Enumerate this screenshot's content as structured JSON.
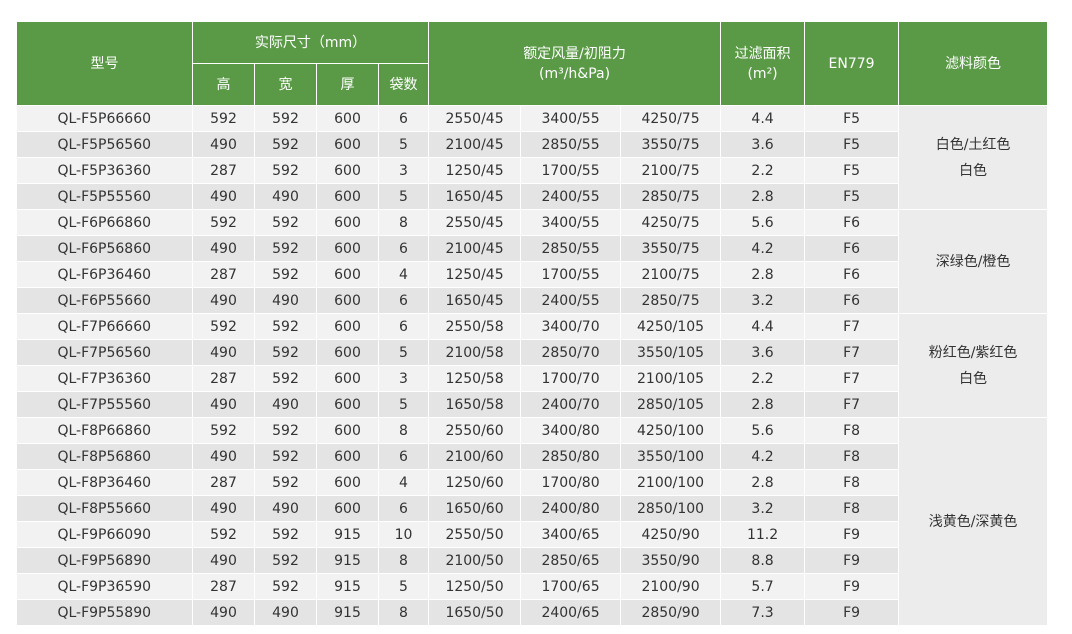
{
  "header": {
    "model": "型号",
    "size_group": "实际尺寸（mm）",
    "size_cols": [
      "高",
      "宽",
      "厚",
      "袋数"
    ],
    "airflow_line1": "额定风量/初阻力",
    "airflow_line2": "(m³/h&Pa)",
    "area_line1": "过滤面积",
    "area_line2": "(m²)",
    "en779": "EN779",
    "color": "滤料颜色"
  },
  "rows": [
    {
      "model": "QL-F5P66660",
      "h": "592",
      "w": "592",
      "d": "600",
      "bags": "6",
      "a1": "2550/45",
      "a2": "3400/55",
      "a3": "4250/75",
      "area": "4.4",
      "grade": "F5"
    },
    {
      "model": "QL-F5P56560",
      "h": "490",
      "w": "592",
      "d": "600",
      "bags": "5",
      "a1": "2100/45",
      "a2": "2850/55",
      "a3": "3550/75",
      "area": "3.6",
      "grade": "F5"
    },
    {
      "model": "QL-F5P36360",
      "h": "287",
      "w": "592",
      "d": "600",
      "bags": "3",
      "a1": "1250/45",
      "a2": "1700/55",
      "a3": "2100/75",
      "area": "2.2",
      "grade": "F5"
    },
    {
      "model": "QL-F5P55560",
      "h": "490",
      "w": "490",
      "d": "600",
      "bags": "5",
      "a1": "1650/45",
      "a2": "2400/55",
      "a3": "2850/75",
      "area": "2.8",
      "grade": "F5"
    },
    {
      "model": "QL-F6P66860",
      "h": "592",
      "w": "592",
      "d": "600",
      "bags": "8",
      "a1": "2550/45",
      "a2": "3400/55",
      "a3": "4250/75",
      "area": "5.6",
      "grade": "F6"
    },
    {
      "model": "QL-F6P56860",
      "h": "490",
      "w": "592",
      "d": "600",
      "bags": "6",
      "a1": "2100/45",
      "a2": "2850/55",
      "a3": "3550/75",
      "area": "4.2",
      "grade": "F6"
    },
    {
      "model": "QL-F6P36460",
      "h": "287",
      "w": "592",
      "d": "600",
      "bags": "4",
      "a1": "1250/45",
      "a2": "1700/55",
      "a3": "2100/75",
      "area": "2.8",
      "grade": "F6"
    },
    {
      "model": "QL-F6P55660",
      "h": "490",
      "w": "490",
      "d": "600",
      "bags": "6",
      "a1": "1650/45",
      "a2": "2400/55",
      "a3": "2850/75",
      "area": "3.2",
      "grade": "F6"
    },
    {
      "model": "QL-F7P66660",
      "h": "592",
      "w": "592",
      "d": "600",
      "bags": "6",
      "a1": "2550/58",
      "a2": "3400/70",
      "a3": "4250/105",
      "area": "4.4",
      "grade": "F7"
    },
    {
      "model": "QL-F7P56560",
      "h": "490",
      "w": "592",
      "d": "600",
      "bags": "5",
      "a1": "2100/58",
      "a2": "2850/70",
      "a3": "3550/105",
      "area": "3.6",
      "grade": "F7"
    },
    {
      "model": "QL-F7P36360",
      "h": "287",
      "w": "592",
      "d": "600",
      "bags": "3",
      "a1": "1250/58",
      "a2": "1700/70",
      "a3": "2100/105",
      "area": "2.2",
      "grade": "F7"
    },
    {
      "model": "QL-F7P55560",
      "h": "490",
      "w": "490",
      "d": "600",
      "bags": "5",
      "a1": "1650/58",
      "a2": "2400/70",
      "a3": "2850/105",
      "area": "2.8",
      "grade": "F7"
    },
    {
      "model": "QL-F8P66860",
      "h": "592",
      "w": "592",
      "d": "600",
      "bags": "8",
      "a1": "2550/60",
      "a2": "3400/80",
      "a3": "4250/100",
      "area": "5.6",
      "grade": "F8"
    },
    {
      "model": "QL-F8P56860",
      "h": "490",
      "w": "592",
      "d": "600",
      "bags": "6",
      "a1": "2100/60",
      "a2": "2850/80",
      "a3": "3550/100",
      "area": "4.2",
      "grade": "F8"
    },
    {
      "model": "QL-F8P36460",
      "h": "287",
      "w": "592",
      "d": "600",
      "bags": "4",
      "a1": "1250/60",
      "a2": "1700/80",
      "a3": "2100/100",
      "area": "2.8",
      "grade": "F8"
    },
    {
      "model": "QL-F8P55660",
      "h": "490",
      "w": "490",
      "d": "600",
      "bags": "6",
      "a1": "1650/60",
      "a2": "2400/80",
      "a3": "2850/100",
      "area": "3.2",
      "grade": "F8"
    },
    {
      "model": "QL-F9P66090",
      "h": "592",
      "w": "592",
      "d": "915",
      "bags": "10",
      "a1": "2550/50",
      "a2": "3400/65",
      "a3": "4250/90",
      "area": "11.2",
      "grade": "F9"
    },
    {
      "model": "QL-F9P56890",
      "h": "490",
      "w": "592",
      "d": "915",
      "bags": "8",
      "a1": "2100/50",
      "a2": "2850/65",
      "a3": "3550/90",
      "area": "8.8",
      "grade": "F9"
    },
    {
      "model": "QL-F9P36590",
      "h": "287",
      "w": "592",
      "d": "915",
      "bags": "5",
      "a1": "1250/50",
      "a2": "1700/65",
      "a3": "2100/90",
      "area": "5.7",
      "grade": "F9"
    },
    {
      "model": "QL-F9P55890",
      "h": "490",
      "w": "490",
      "d": "915",
      "bags": "8",
      "a1": "1650/50",
      "a2": "2400/65",
      "a3": "2850/90",
      "area": "7.3",
      "grade": "F9"
    }
  ],
  "color_groups": [
    {
      "lines": [
        "白色/土红色",
        "白色"
      ]
    },
    {
      "lines": [
        "深绿色/橙色"
      ]
    },
    {
      "lines": [
        "粉红色/紫红色",
        "白色"
      ]
    },
    {
      "lines": [
        "浅黄色/深黄色"
      ]
    }
  ],
  "colors": {
    "header_bg": "#5a9a46",
    "row_light": "#f2f2f2",
    "row_dark": "#e4e4e4"
  }
}
